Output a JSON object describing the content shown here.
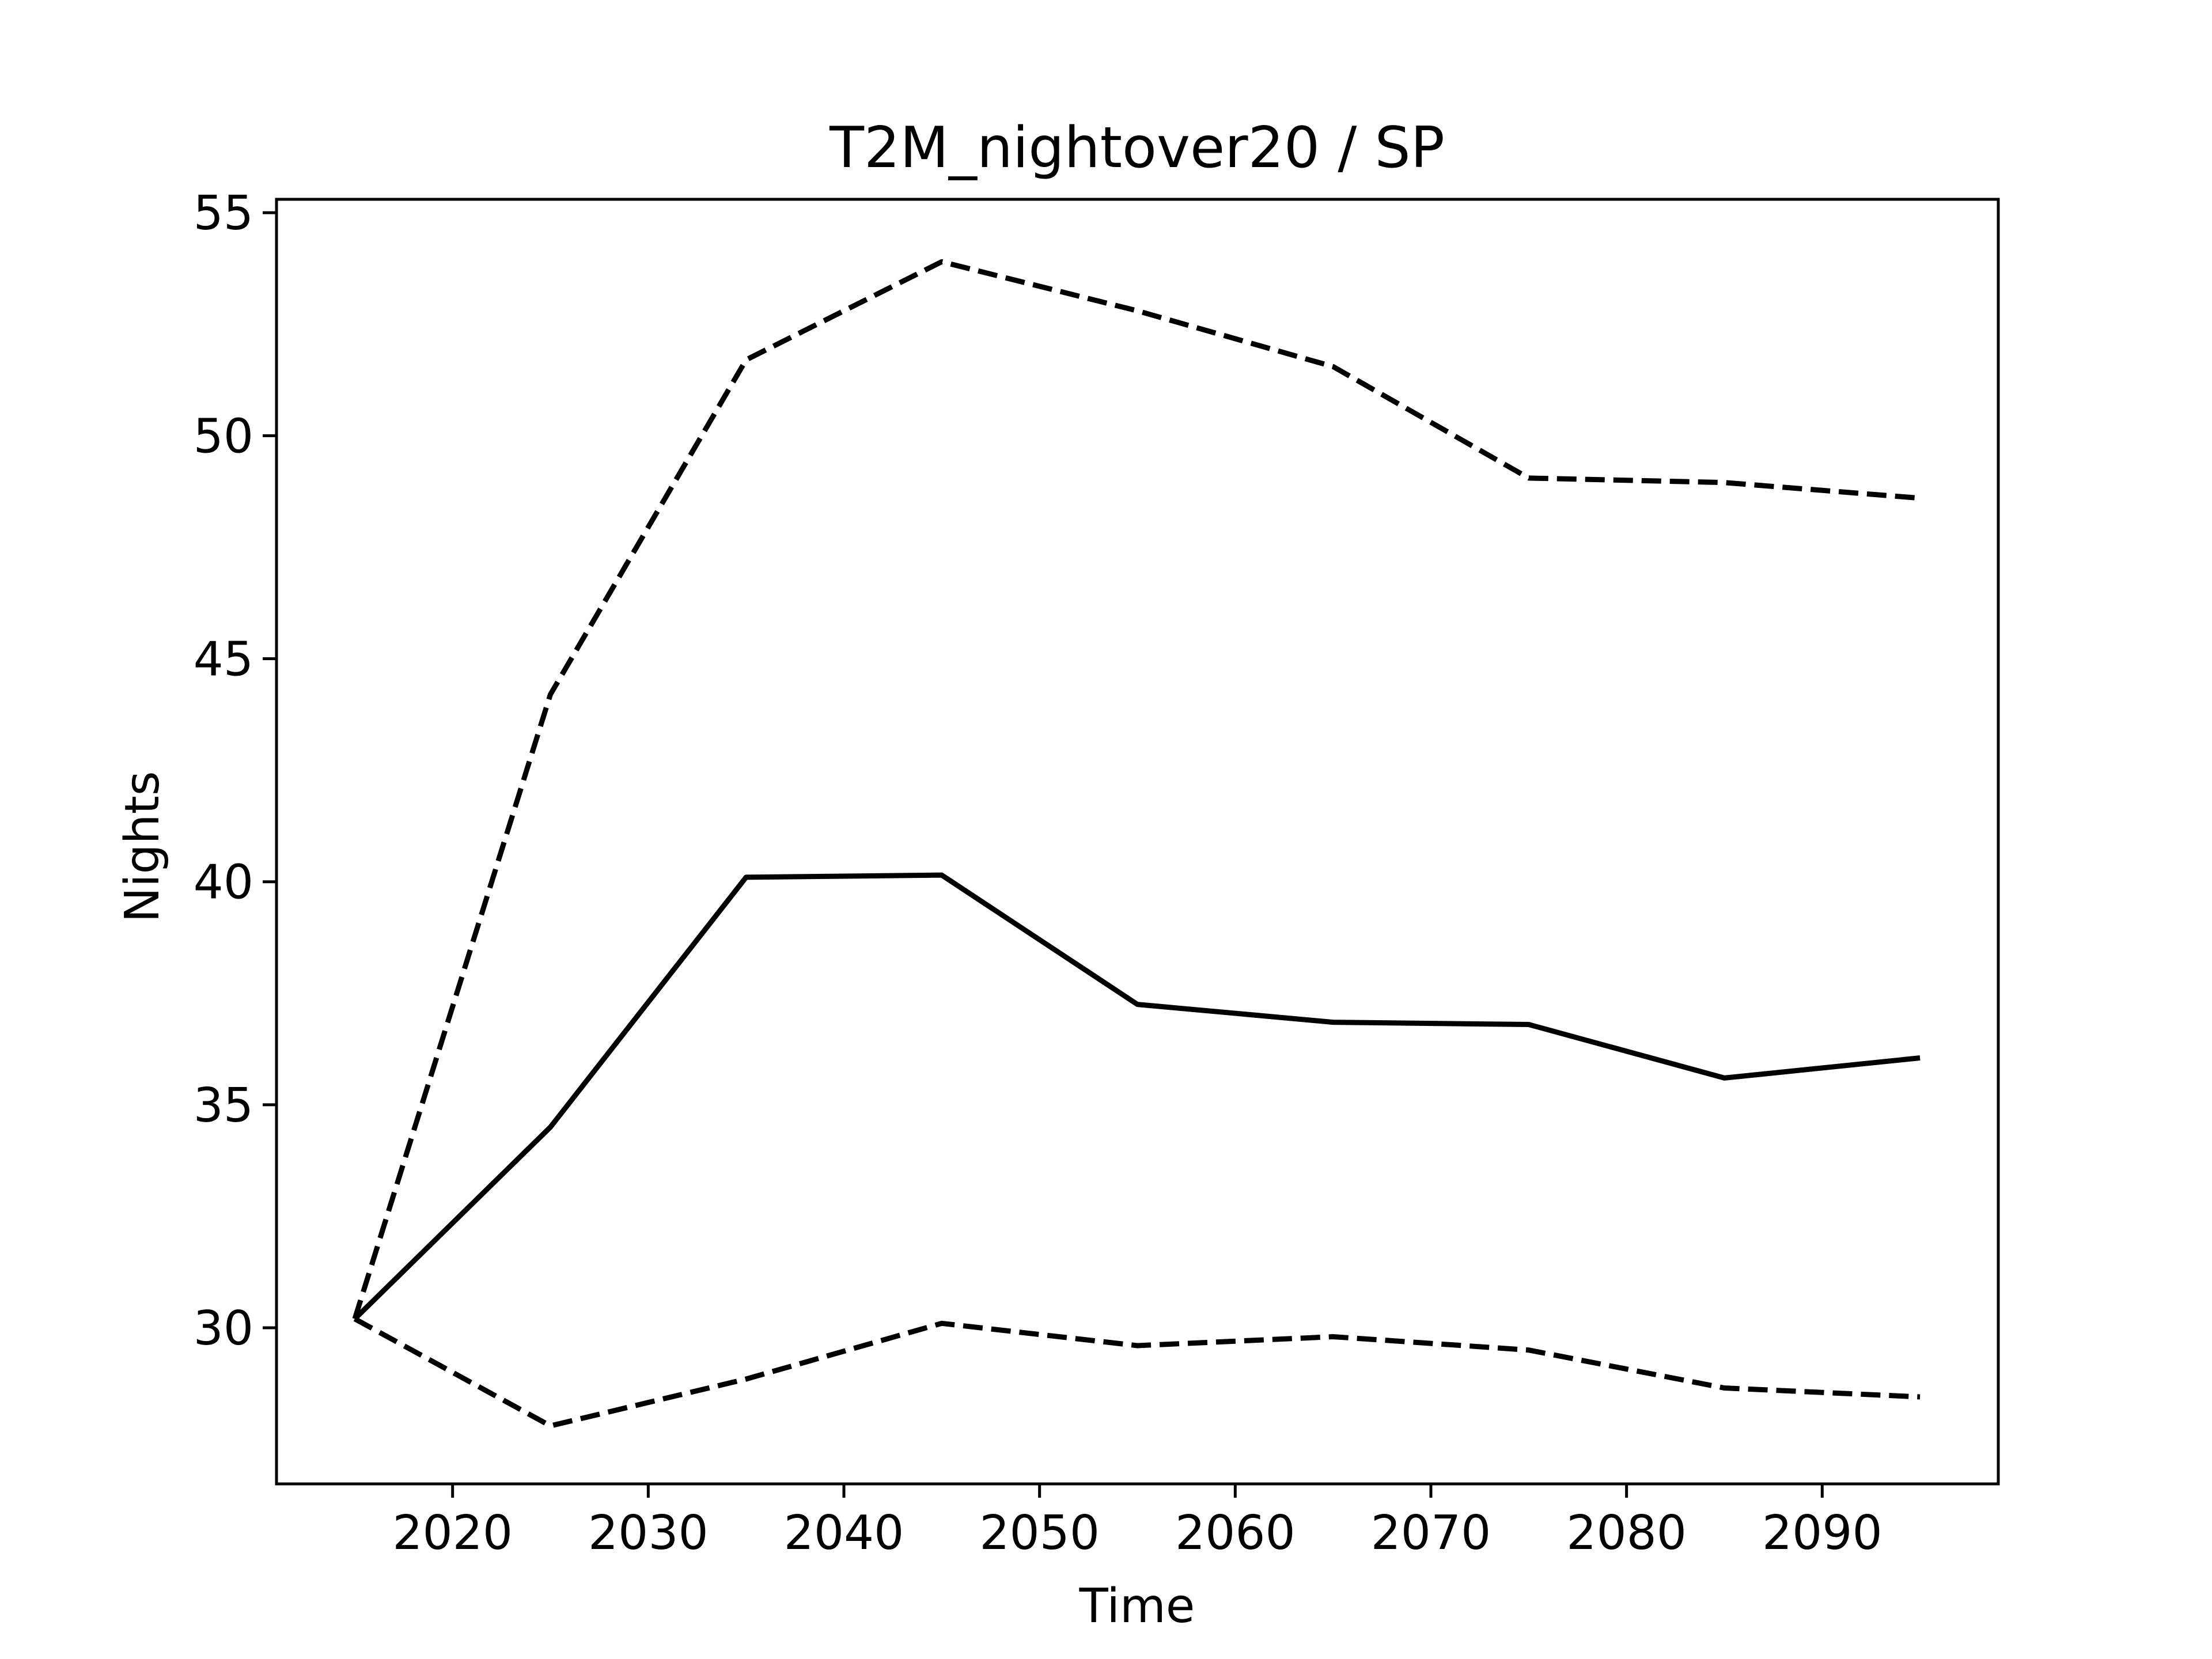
{
  "chart_data": {
    "type": "line",
    "title": "T2M_nightover20 / SP",
    "xlabel": "Time",
    "ylabel": "Nights",
    "x": [
      2015,
      2025,
      2035,
      2045,
      2055,
      2065,
      2075,
      2085,
      2095
    ],
    "xlim": [
      2011,
      2099
    ],
    "ylim": [
      26.5,
      55.3
    ],
    "xticks": [
      2020,
      2030,
      2040,
      2050,
      2060,
      2070,
      2080,
      2090
    ],
    "yticks": [
      30,
      35,
      40,
      45,
      50,
      55
    ],
    "grid": false,
    "series": [
      {
        "style": "solid",
        "color": "#000000",
        "values": [
          30.2,
          34.5,
          40.1,
          40.15,
          37.25,
          36.85,
          36.8,
          35.6,
          36.05
        ]
      },
      {
        "style": "dashed",
        "color": "#000000",
        "values": [
          30.2,
          44.2,
          51.7,
          53.9,
          52.8,
          51.55,
          49.05,
          48.95,
          48.6
        ]
      },
      {
        "style": "dashed",
        "color": "#000000",
        "values": [
          30.2,
          27.8,
          28.85,
          30.1,
          29.6,
          29.8,
          29.5,
          28.65,
          28.45
        ]
      }
    ]
  }
}
